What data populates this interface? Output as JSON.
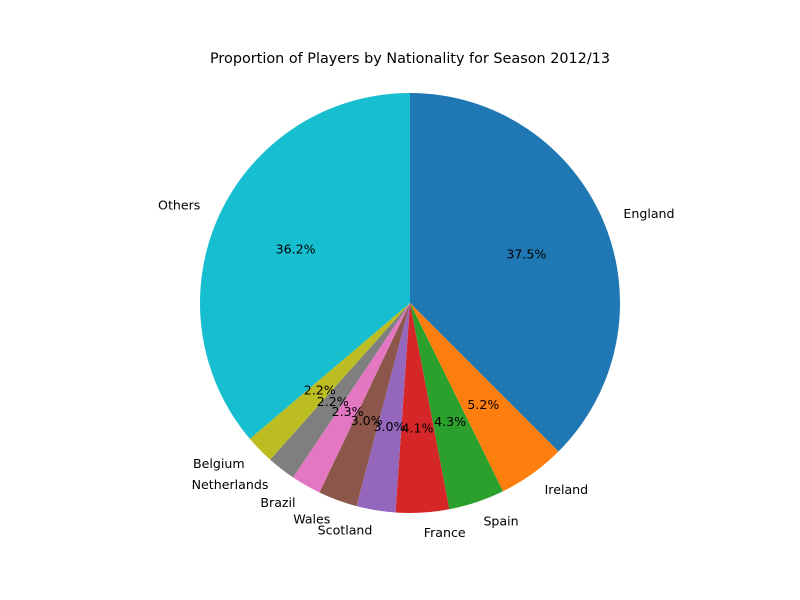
{
  "chart_data": {
    "type": "pie",
    "title": "Proportion of Players by Nationality for Season 2012/13",
    "start_angle": "12 o'clock, clockwise",
    "slices": [
      {
        "label": "England",
        "value": 37.5,
        "pct_label": "37.5%",
        "color": "#1f77b4"
      },
      {
        "label": "Ireland",
        "value": 5.2,
        "pct_label": "5.2%",
        "color": "#ff7f0e"
      },
      {
        "label": "Spain",
        "value": 4.3,
        "pct_label": "4.3%",
        "color": "#2ca02c"
      },
      {
        "label": "France",
        "value": 4.1,
        "pct_label": "4.1%",
        "color": "#d62728"
      },
      {
        "label": "Scotland",
        "value": 3.0,
        "pct_label": "3.0%",
        "color": "#9467bd"
      },
      {
        "label": "Wales",
        "value": 3.0,
        "pct_label": "3.0%",
        "color": "#8c564b"
      },
      {
        "label": "Brazil",
        "value": 2.3,
        "pct_label": "2.3%",
        "color": "#e377c2"
      },
      {
        "label": "Netherlands",
        "value": 2.2,
        "pct_label": "2.2%",
        "color": "#7f7f7f"
      },
      {
        "label": "Belgium",
        "value": 2.2,
        "pct_label": "2.2%",
        "color": "#bcbd22"
      },
      {
        "label": "Others",
        "value": 36.2,
        "pct_label": "36.2%",
        "color": "#17becf"
      }
    ]
  }
}
